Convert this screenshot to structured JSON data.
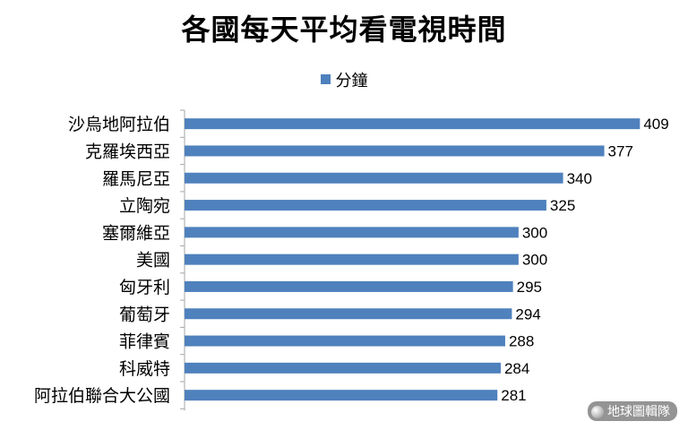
{
  "chart_data": {
    "type": "bar",
    "orientation": "horizontal",
    "title": "各國每天平均看電視時間",
    "legend": {
      "position": "top"
    },
    "series": [
      {
        "name": "分鐘",
        "color": "#4f81bd",
        "values": [
          409,
          377,
          340,
          325,
          300,
          300,
          295,
          294,
          288,
          284,
          281
        ]
      }
    ],
    "categories": [
      "沙烏地阿拉伯",
      "克羅埃西亞",
      "羅馬尼亞",
      "立陶宛",
      "塞爾維亞",
      "美國",
      "匈牙利",
      "葡萄牙",
      "菲律賓",
      "科威特",
      "阿拉伯聯合大公國"
    ],
    "xlim": [
      0,
      420
    ],
    "data_labels": true,
    "grid": false
  },
  "watermark": {
    "text": "地球圖輯隊"
  }
}
